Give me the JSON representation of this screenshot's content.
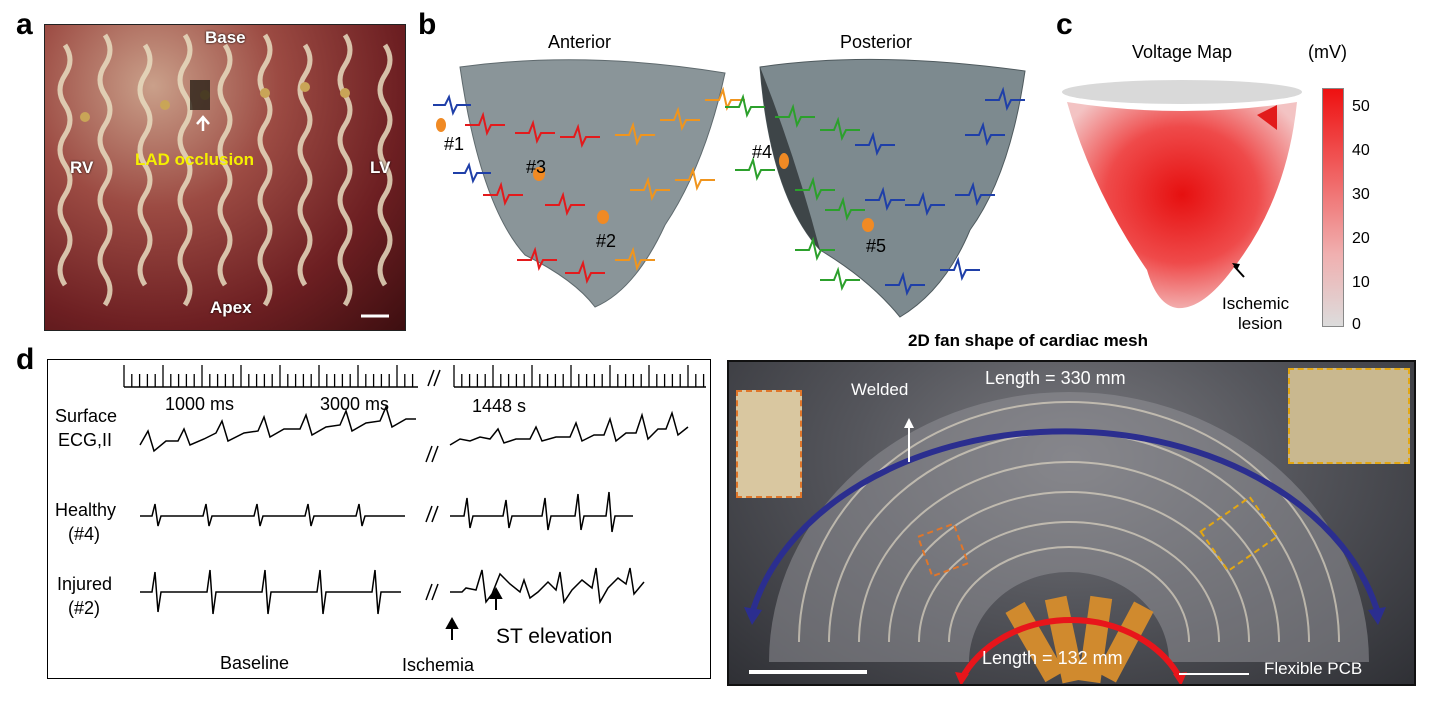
{
  "panels": {
    "a": "a",
    "b": "b",
    "c": "c",
    "d": "d"
  },
  "a": {
    "base": "Base",
    "rv": "RV",
    "lv": "LV",
    "apex": "Apex",
    "lad": "LAD occlusion"
  },
  "b": {
    "anterior": "Anterior",
    "posterior": "Posterior",
    "sites": [
      "#1",
      "#3",
      "#2",
      "#4",
      "#5"
    ]
  },
  "c": {
    "title": "Voltage Map",
    "unit": "(mV)",
    "ticks": [
      "50",
      "40",
      "30",
      "20",
      "10",
      "0"
    ],
    "lesion1": "Ischemic",
    "lesion2": "lesion"
  },
  "d": {
    "t1000": "1000 ms",
    "t3000": "3000 ms",
    "t1448": "1448 s",
    "surface1": "Surface",
    "surface2": "ECG,II",
    "healthy1": "Healthy",
    "healthy2": "(#4)",
    "injured1": "Injured",
    "injured2": "(#2)",
    "break": "//",
    "baseline": "Baseline",
    "ischemia": "Ischemia",
    "st": "ST elevation"
  },
  "mesh": {
    "title": "2D fan shape of cardiac mesh",
    "welded": "Welded",
    "length_outer": "Length = 330 mm",
    "length_inner": "Length  = 132 mm",
    "pcb": "Flexible PCB"
  },
  "colors": {
    "red_series": "#e31a1c",
    "orange_series": "#f0951e",
    "blue_series": "#1f3fa8",
    "green_series": "#2ca02c",
    "arc_blue": "#2b2e8f",
    "arc_red": "#e8151b"
  }
}
